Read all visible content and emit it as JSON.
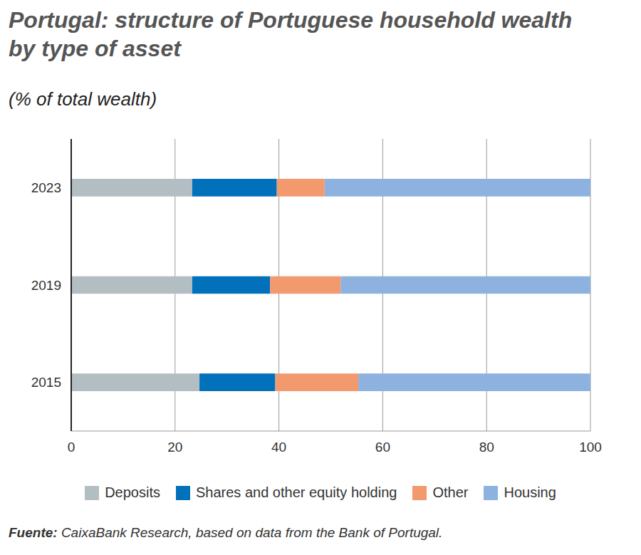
{
  "chart_data": {
    "type": "bar",
    "title": "Portugal: structure of Portuguese household wealth by type of asset",
    "subtitle": "(% of total wealth)",
    "source": "Fuente: CaixaBank Research, based on data from the Bank of Portugal.",
    "orientation": "horizontal",
    "stacked": true,
    "grid": true,
    "categories": [
      "2023",
      "2019",
      "2015"
    ],
    "series": [
      {
        "name": "Deposits",
        "color": "#b3bec2",
        "values": [
          23.3,
          23.3,
          24.7
        ]
      },
      {
        "name": "Shares and other equity holding",
        "color": "#0271bb",
        "values": [
          16.3,
          15.0,
          14.6
        ]
      },
      {
        "name": "Other",
        "color": "#f2996e",
        "values": [
          9.2,
          13.6,
          16.0
        ]
      },
      {
        "name": "Housing",
        "color": "#8db2e0",
        "values": [
          51.2,
          48.1,
          44.7
        ]
      }
    ],
    "xlim": [
      0,
      100
    ],
    "xticks": [
      0,
      20,
      40,
      60,
      80,
      100
    ]
  }
}
